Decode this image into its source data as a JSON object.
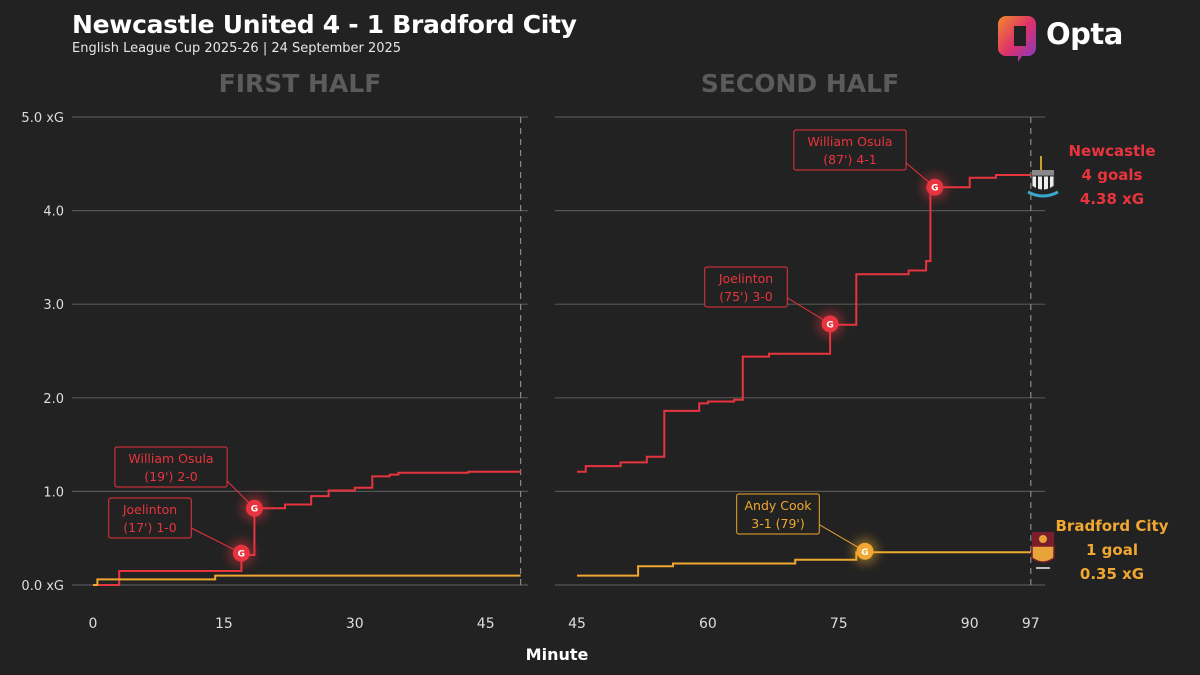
{
  "header": {
    "title": "Newcastle United 4 - 1 Bradford City",
    "subtitle": "English League Cup 2025-26 | 24 September 2025",
    "brand": "Opta"
  },
  "colors": {
    "newcastle": "#e8343e",
    "bradford": "#f0a830",
    "background": "#222222",
    "grid": "#555555"
  },
  "chart_data": {
    "type": "line",
    "step": true,
    "xlabel": "Minute",
    "yunit": "xG",
    "ylim": [
      0,
      5
    ],
    "y_ticks": [
      "0.0 xG",
      "1.0",
      "2.0",
      "3.0",
      "4.0",
      "5.0 xG"
    ],
    "grid": true,
    "panels": [
      {
        "name": "FIRST HALF",
        "xlim": [
          0,
          49
        ],
        "x_ticks": [
          0,
          15,
          30,
          45
        ],
        "end_marker": 49
      },
      {
        "name": "SECOND HALF",
        "xlim": [
          45,
          99
        ],
        "x_ticks": [
          45,
          60,
          75,
          90,
          97
        ],
        "end_marker": 97
      }
    ],
    "series": [
      {
        "team": "Newcastle",
        "color": "#e8343e",
        "first_half": [
          [
            0,
            0
          ],
          [
            3,
            0
          ],
          [
            3,
            0.15
          ],
          [
            17,
            0.15
          ],
          [
            17,
            0.32
          ],
          [
            18.5,
            0.32
          ],
          [
            18.5,
            0.82
          ],
          [
            22,
            0.82
          ],
          [
            22,
            0.86
          ],
          [
            25,
            0.86
          ],
          [
            25,
            0.95
          ],
          [
            27,
            0.95
          ],
          [
            27,
            1.01
          ],
          [
            30,
            1.01
          ],
          [
            30,
            1.04
          ],
          [
            32,
            1.04
          ],
          [
            32,
            1.16
          ],
          [
            34,
            1.16
          ],
          [
            34,
            1.18
          ],
          [
            35,
            1.18
          ],
          [
            35,
            1.2
          ],
          [
            43,
            1.2
          ],
          [
            43,
            1.21
          ],
          [
            49,
            1.21
          ]
        ],
        "second_half": [
          [
            45,
            1.21
          ],
          [
            46,
            1.21
          ],
          [
            46,
            1.27
          ],
          [
            47,
            1.27
          ],
          [
            47,
            1.27
          ],
          [
            50,
            1.27
          ],
          [
            50,
            1.31
          ],
          [
            53,
            1.31
          ],
          [
            53,
            1.37
          ],
          [
            55,
            1.37
          ],
          [
            55,
            1.86
          ],
          [
            59,
            1.86
          ],
          [
            59,
            1.94
          ],
          [
            60,
            1.94
          ],
          [
            60,
            1.96
          ],
          [
            63,
            1.96
          ],
          [
            63,
            1.98
          ],
          [
            64,
            1.98
          ],
          [
            64,
            2.44
          ],
          [
            67,
            2.44
          ],
          [
            67,
            2.47
          ],
          [
            74,
            2.47
          ],
          [
            74,
            2.78
          ],
          [
            77,
            2.78
          ],
          [
            77,
            3.32
          ],
          [
            83,
            3.32
          ],
          [
            83,
            3.36
          ],
          [
            85,
            3.36
          ],
          [
            85,
            3.46
          ],
          [
            85.5,
            3.46
          ],
          [
            85.5,
            4.25
          ],
          [
            90,
            4.25
          ],
          [
            90,
            4.35
          ],
          [
            93,
            4.35
          ],
          [
            93,
            4.38
          ],
          [
            97,
            4.38
          ]
        ]
      },
      {
        "team": "Bradford City",
        "color": "#f0a830",
        "first_half": [
          [
            0,
            0
          ],
          [
            0.5,
            0
          ],
          [
            0.5,
            0.06
          ],
          [
            14,
            0.06
          ],
          [
            14,
            0.1
          ],
          [
            49,
            0.1
          ]
        ],
        "second_half": [
          [
            45,
            0.1
          ],
          [
            52,
            0.1
          ],
          [
            52,
            0.2
          ],
          [
            56,
            0.2
          ],
          [
            56,
            0.23
          ],
          [
            70,
            0.23
          ],
          [
            70,
            0.27
          ],
          [
            77,
            0.27
          ],
          [
            77,
            0.35
          ],
          [
            97,
            0.35
          ]
        ]
      }
    ],
    "goals": [
      {
        "team": "Newcastle",
        "half": 1,
        "minute": 17,
        "xg": 0.34,
        "marker": "G",
        "label": [
          "Joelinton",
          "(17') 1-0"
        ]
      },
      {
        "team": "Newcastle",
        "half": 1,
        "minute": 18.5,
        "xg": 0.82,
        "marker": "G",
        "label": [
          "William Osula",
          "(19') 2-0"
        ]
      },
      {
        "team": "Newcastle",
        "half": 2,
        "minute": 74,
        "xg": 2.79,
        "marker": "G",
        "label": [
          "Joelinton",
          "(75') 3-0"
        ]
      },
      {
        "team": "Bradford City",
        "half": 2,
        "minute": 78,
        "xg": 0.36,
        "marker": "G",
        "label": [
          "Andy Cook",
          "3-1 (79')"
        ]
      },
      {
        "team": "Newcastle",
        "half": 2,
        "minute": 86,
        "xg": 4.25,
        "marker": "G",
        "label": [
          "William Osula",
          "(87') 4-1"
        ]
      }
    ],
    "summaries": [
      {
        "team": "Newcastle",
        "lines": [
          "Newcastle",
          "4 goals",
          "4.38 xG"
        ],
        "color": "#e8343e"
      },
      {
        "team": "Bradford City",
        "lines": [
          "Bradford City",
          "1 goal",
          "0.35 xG"
        ],
        "color": "#f0a830"
      }
    ]
  }
}
